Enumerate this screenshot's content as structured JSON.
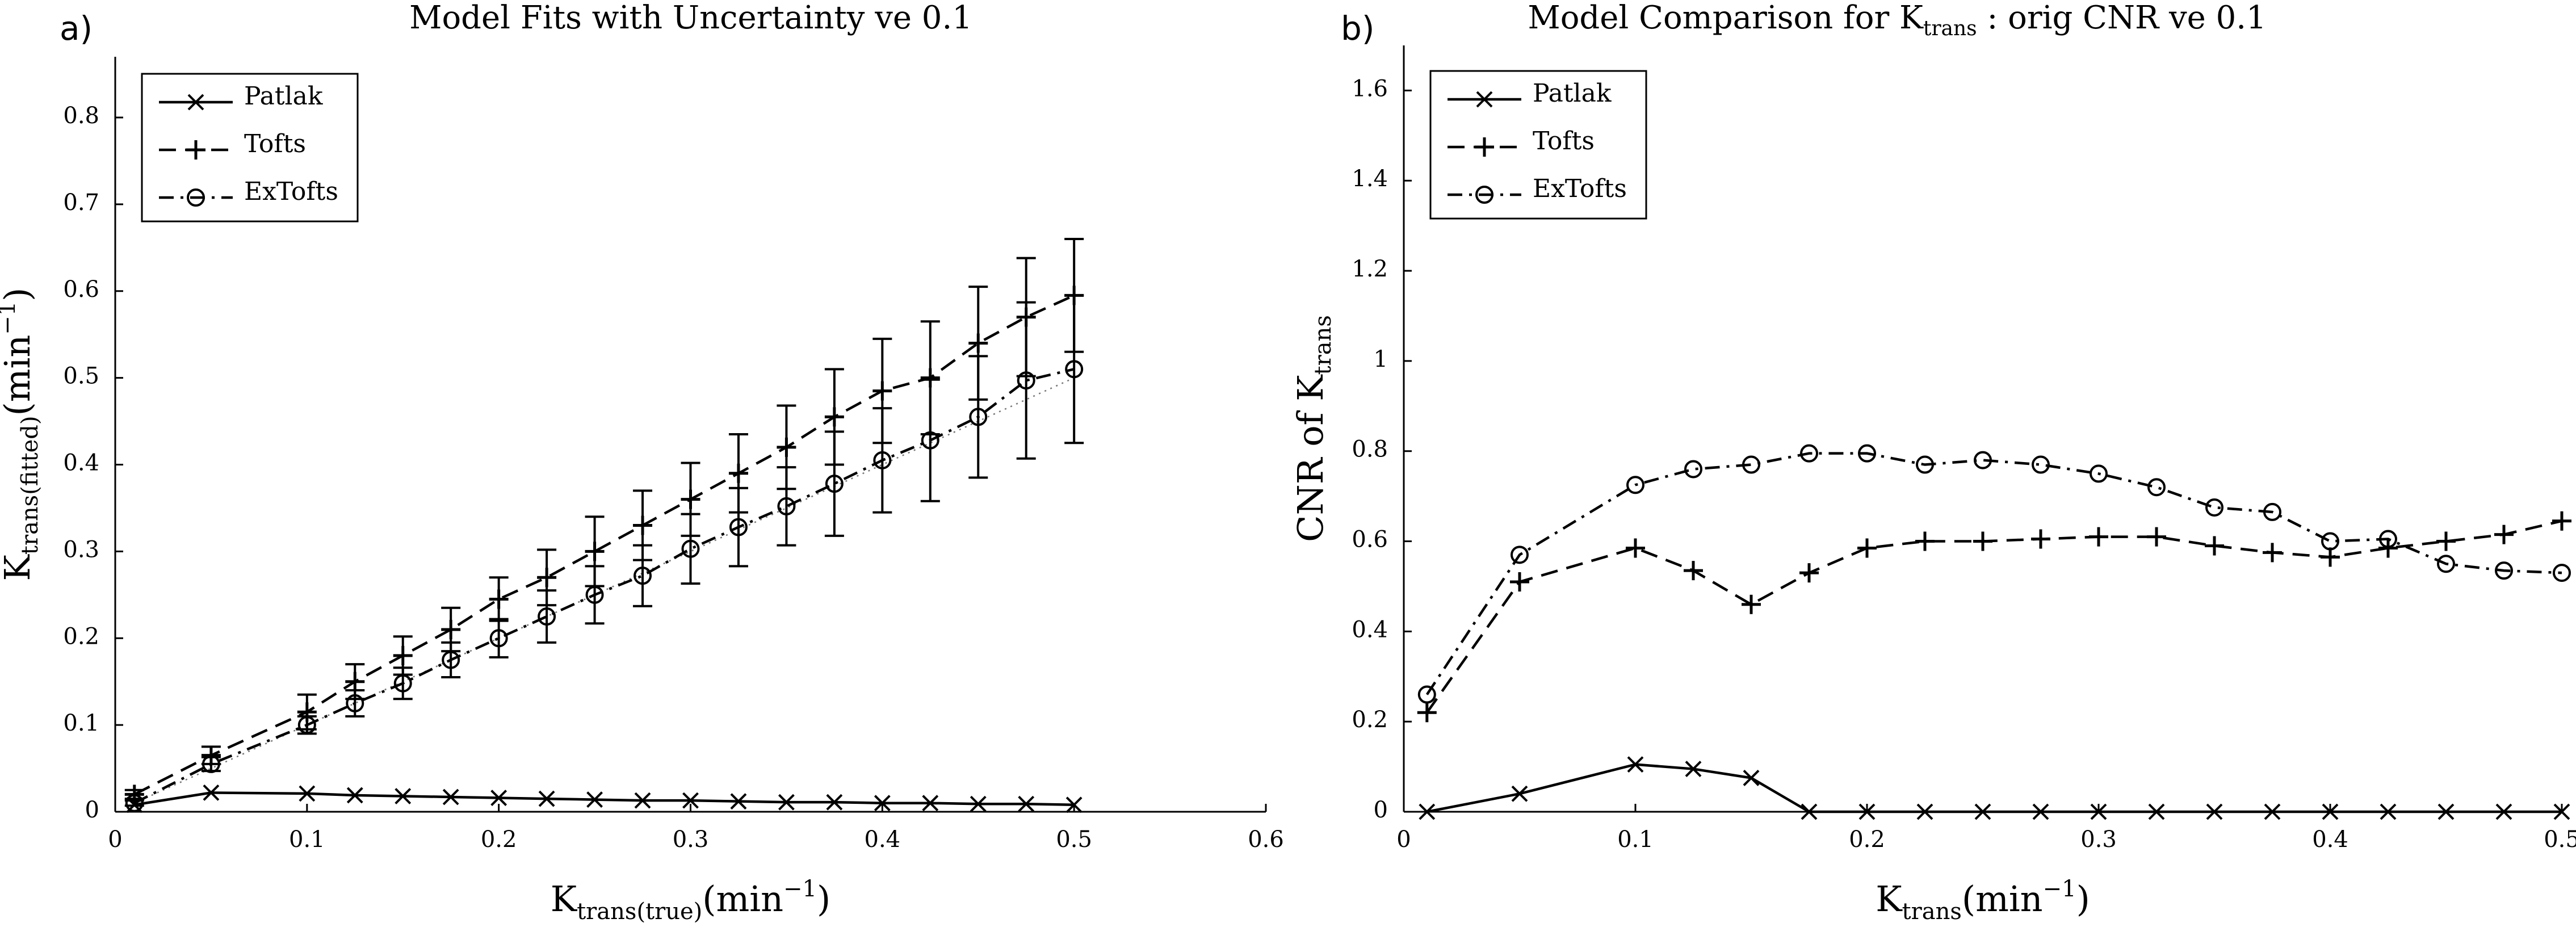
{
  "chart_data": [
    {
      "panel_label": "a)",
      "type": "line",
      "title": "Model Fits with Uncertainty ve 0.1",
      "xlabel": {
        "main": "K",
        "sub": "trans(true)",
        "unit": "(min",
        "exp": "−1",
        "close": ")"
      },
      "ylabel": {
        "main": "K",
        "sub": "trans(fitted)",
        "unit": "(min",
        "exp": "−1",
        "close": ")"
      },
      "xlim": [
        0,
        0.6
      ],
      "ylim": [
        0,
        0.87
      ],
      "xticks": [
        "0",
        "0.1",
        "0.2",
        "0.3",
        "0.4",
        "0.5",
        "0.6"
      ],
      "xtick_values": [
        0,
        0.1,
        0.2,
        0.3,
        0.4,
        0.5,
        0.6
      ],
      "yticks": [
        "0",
        "0.1",
        "0.2",
        "0.3",
        "0.4",
        "0.5",
        "0.6",
        "0.7",
        "0.8"
      ],
      "ytick_values": [
        0,
        0.1,
        0.2,
        0.3,
        0.4,
        0.5,
        0.6,
        0.7,
        0.8
      ],
      "legend_position": "top-left",
      "x": [
        0.01,
        0.05,
        0.1,
        0.125,
        0.15,
        0.175,
        0.2,
        0.225,
        0.25,
        0.275,
        0.3,
        0.325,
        0.35,
        0.375,
        0.4,
        0.425,
        0.45,
        0.475,
        0.5
      ],
      "reference_line": {
        "style": "dotted",
        "x": [
          0.01,
          0.5
        ],
        "y": [
          0.01,
          0.5
        ]
      },
      "series": [
        {
          "name": "Patlak",
          "marker": "x",
          "dash": "solid",
          "values": [
            0.008,
            0.022,
            0.021,
            0.019,
            0.018,
            0.017,
            0.016,
            0.015,
            0.014,
            0.013,
            0.013,
            0.012,
            0.011,
            0.011,
            0.01,
            0.01,
            0.009,
            0.009,
            0.008
          ]
        },
        {
          "name": "Tofts",
          "marker": "+",
          "dash": "dashed",
          "values": [
            0.02,
            0.065,
            0.115,
            0.15,
            0.18,
            0.21,
            0.245,
            0.27,
            0.3,
            0.33,
            0.36,
            0.39,
            0.42,
            0.455,
            0.485,
            0.5,
            0.54,
            0.57,
            0.595
          ],
          "err": [
            0.005,
            0.01,
            0.02,
            0.02,
            0.022,
            0.025,
            0.025,
            0.032,
            0.04,
            0.04,
            0.042,
            0.045,
            0.048,
            0.055,
            0.06,
            0.065,
            0.065,
            0.068,
            0.065
          ]
        },
        {
          "name": "ExTofts",
          "marker": "o",
          "dash": "dashdot",
          "values": [
            0.01,
            0.055,
            0.1,
            0.125,
            0.148,
            0.175,
            0.2,
            0.225,
            0.25,
            0.272,
            0.303,
            0.328,
            0.352,
            0.378,
            0.405,
            0.428,
            0.455,
            0.497,
            0.51
          ],
          "err": [
            0.003,
            0.008,
            0.01,
            0.015,
            0.018,
            0.02,
            0.022,
            0.03,
            0.033,
            0.035,
            0.04,
            0.045,
            0.045,
            0.06,
            0.06,
            0.07,
            0.07,
            0.09,
            0.085
          ]
        }
      ]
    },
    {
      "panel_label": "b)",
      "type": "line",
      "title": {
        "main": "Model Comparison for K",
        "sub": "trans",
        "rest": " : orig CNR ve 0.1"
      },
      "xlabel": {
        "main": "K",
        "sub": "trans",
        "unit": "(min",
        "exp": "−1",
        "close": ")"
      },
      "ylabel": {
        "main": "CNR of K",
        "sub": "trans"
      },
      "xlim": [
        0,
        0.5
      ],
      "ylim": [
        0,
        1.7
      ],
      "xticks": [
        "0",
        "0.1",
        "0.2",
        "0.3",
        "0.4",
        "0.5"
      ],
      "xtick_values": [
        0,
        0.1,
        0.2,
        0.3,
        0.4,
        0.5
      ],
      "yticks": [
        "0",
        "0.2",
        "0.4",
        "0.6",
        "0.8",
        "1",
        "1.2",
        "1.4",
        "1.6"
      ],
      "ytick_values": [
        0,
        0.2,
        0.4,
        0.6,
        0.8,
        1,
        1.2,
        1.4,
        1.6
      ],
      "legend_position": "top-left",
      "x": [
        0.01,
        0.05,
        0.1,
        0.125,
        0.15,
        0.175,
        0.2,
        0.225,
        0.25,
        0.275,
        0.3,
        0.325,
        0.35,
        0.375,
        0.4,
        0.425,
        0.45,
        0.475,
        0.5
      ],
      "series": [
        {
          "name": "Patlak",
          "marker": "x",
          "dash": "solid",
          "values": [
            0.0,
            0.04,
            0.105,
            0.095,
            0.075,
            0.0,
            0.0,
            0.0,
            0.0,
            0.0,
            0.0,
            0.0,
            0.0,
            0.0,
            0.0,
            0.0,
            0.0,
            0.0,
            0.0
          ]
        },
        {
          "name": "Tofts",
          "marker": "+",
          "dash": "dashed",
          "values": [
            0.22,
            0.51,
            0.585,
            0.535,
            0.46,
            0.53,
            0.585,
            0.6,
            0.6,
            0.605,
            0.61,
            0.61,
            0.59,
            0.575,
            0.565,
            0.585,
            0.6,
            0.615,
            0.645
          ]
        },
        {
          "name": "ExTofts",
          "marker": "o",
          "dash": "dashdot",
          "values": [
            0.26,
            0.57,
            0.725,
            0.76,
            0.77,
            0.795,
            0.795,
            0.77,
            0.78,
            0.77,
            0.75,
            0.72,
            0.675,
            0.665,
            0.6,
            0.605,
            0.55,
            0.535,
            0.53
          ]
        }
      ]
    }
  ]
}
